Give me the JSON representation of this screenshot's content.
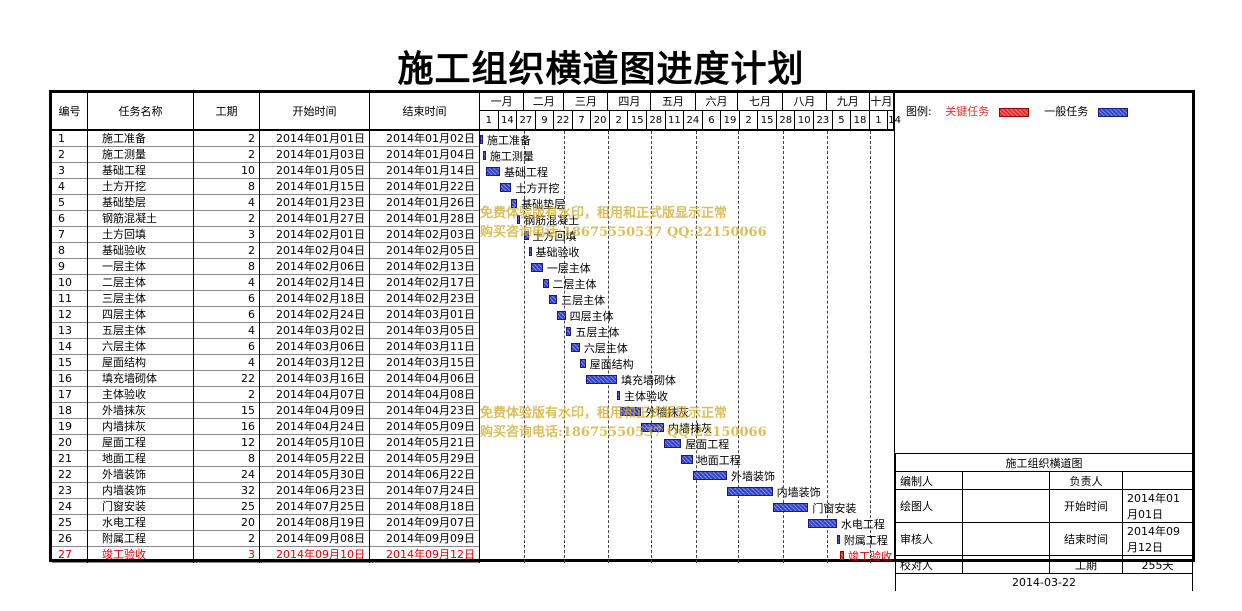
{
  "title": "施工组织横道图进度计划",
  "table": {
    "headers": {
      "id": "编号",
      "name": "任务名称",
      "duration": "工期",
      "start": "开始时间",
      "end": "结束时间"
    }
  },
  "timeline": {
    "months": [
      "一月",
      "二月",
      "三月",
      "四月",
      "五月",
      "六月",
      "七月",
      "八月",
      "九月",
      "十月"
    ],
    "ticks": [
      "1",
      "14",
      "27",
      "9",
      "22",
      "7",
      "20",
      "2",
      "15",
      "28",
      "11",
      "24",
      "6",
      "19",
      "2",
      "15",
      "28",
      "10",
      "23",
      "5",
      "18",
      "1",
      "14"
    ],
    "start_date": "2014-01-01",
    "end_date": "2014-10-17"
  },
  "tasks": [
    {
      "id": "1",
      "name": "施工准备",
      "duration": "2",
      "start": "2014年01月01日",
      "end": "2014年01月02日",
      "critical": false
    },
    {
      "id": "2",
      "name": "施工测量",
      "duration": "2",
      "start": "2014年01月03日",
      "end": "2014年01月04日",
      "critical": false
    },
    {
      "id": "3",
      "name": "基础工程",
      "duration": "10",
      "start": "2014年01月05日",
      "end": "2014年01月14日",
      "critical": false
    },
    {
      "id": "4",
      "name": "土方开挖",
      "duration": "8",
      "start": "2014年01月15日",
      "end": "2014年01月22日",
      "critical": false
    },
    {
      "id": "5",
      "name": "基础垫层",
      "duration": "4",
      "start": "2014年01月23日",
      "end": "2014年01月26日",
      "critical": false
    },
    {
      "id": "6",
      "name": "钢筋混凝土",
      "duration": "2",
      "start": "2014年01月27日",
      "end": "2014年01月28日",
      "critical": false
    },
    {
      "id": "7",
      "name": "土方回填",
      "duration": "3",
      "start": "2014年02月01日",
      "end": "2014年02月03日",
      "critical": false
    },
    {
      "id": "8",
      "name": "基础验收",
      "duration": "2",
      "start": "2014年02月04日",
      "end": "2014年02月05日",
      "critical": false
    },
    {
      "id": "9",
      "name": "一层主体",
      "duration": "8",
      "start": "2014年02月06日",
      "end": "2014年02月13日",
      "critical": false
    },
    {
      "id": "10",
      "name": "二层主体",
      "duration": "4",
      "start": "2014年02月14日",
      "end": "2014年02月17日",
      "critical": false
    },
    {
      "id": "11",
      "name": "三层主体",
      "duration": "6",
      "start": "2014年02月18日",
      "end": "2014年02月23日",
      "critical": false
    },
    {
      "id": "12",
      "name": "四层主体",
      "duration": "6",
      "start": "2014年02月24日",
      "end": "2014年03月01日",
      "critical": false
    },
    {
      "id": "13",
      "name": "五层主体",
      "duration": "4",
      "start": "2014年03月02日",
      "end": "2014年03月05日",
      "critical": false
    },
    {
      "id": "14",
      "name": "六层主体",
      "duration": "6",
      "start": "2014年03月06日",
      "end": "2014年03月11日",
      "critical": false
    },
    {
      "id": "15",
      "name": "屋面结构",
      "duration": "4",
      "start": "2014年03月12日",
      "end": "2014年03月15日",
      "critical": false
    },
    {
      "id": "16",
      "name": "填充墙砌体",
      "duration": "22",
      "start": "2014年03月16日",
      "end": "2014年04月06日",
      "critical": false
    },
    {
      "id": "17",
      "name": "主体验收",
      "duration": "2",
      "start": "2014年04月07日",
      "end": "2014年04月08日",
      "critical": false
    },
    {
      "id": "18",
      "name": "外墙抹灰",
      "duration": "15",
      "start": "2014年04月09日",
      "end": "2014年04月23日",
      "critical": false
    },
    {
      "id": "19",
      "name": "内墙抹灰",
      "duration": "16",
      "start": "2014年04月24日",
      "end": "2014年05月09日",
      "critical": false
    },
    {
      "id": "20",
      "name": "屋面工程",
      "duration": "12",
      "start": "2014年05月10日",
      "end": "2014年05月21日",
      "critical": false
    },
    {
      "id": "21",
      "name": "地面工程",
      "duration": "8",
      "start": "2014年05月22日",
      "end": "2014年05月29日",
      "critical": false
    },
    {
      "id": "22",
      "name": "外墙装饰",
      "duration": "24",
      "start": "2014年05月30日",
      "end": "2014年06月22日",
      "critical": false
    },
    {
      "id": "23",
      "name": "内墙装饰",
      "duration": "32",
      "start": "2014年06月23日",
      "end": "2014年07月24日",
      "critical": false
    },
    {
      "id": "24",
      "name": "门窗安装",
      "duration": "25",
      "start": "2014年07月25日",
      "end": "2014年08月18日",
      "critical": false
    },
    {
      "id": "25",
      "name": "水电工程",
      "duration": "20",
      "start": "2014年08月19日",
      "end": "2014年09月07日",
      "critical": false
    },
    {
      "id": "26",
      "name": "附属工程",
      "duration": "2",
      "start": "2014年09月08日",
      "end": "2014年09月09日",
      "critical": false
    },
    {
      "id": "27",
      "name": "竣工验收",
      "duration": "3",
      "start": "2014年09月10日",
      "end": "2014年09月12日",
      "critical": true
    }
  ],
  "legend": {
    "label": "图例:",
    "critical": "关键任务",
    "normal": "一般任务",
    "critical_color": "#e03030",
    "normal_color": "#3344cc"
  },
  "watermark": {
    "line1": "免费体验版有水印，租用和正式版显示正常",
    "line2": "购买咨询电话:18675550537 QQ:22150066"
  },
  "info_box": {
    "title": "施工组织横道图",
    "rows": [
      [
        "编制人",
        "",
        "负责人",
        ""
      ],
      [
        "绘图人",
        "",
        "开始时间",
        "2014年01月01日"
      ],
      [
        "审核人",
        "",
        "结束时间",
        "2014年09月12日"
      ],
      [
        "校对人",
        "",
        "工期",
        "255天"
      ]
    ],
    "date": "2014-03-22"
  }
}
